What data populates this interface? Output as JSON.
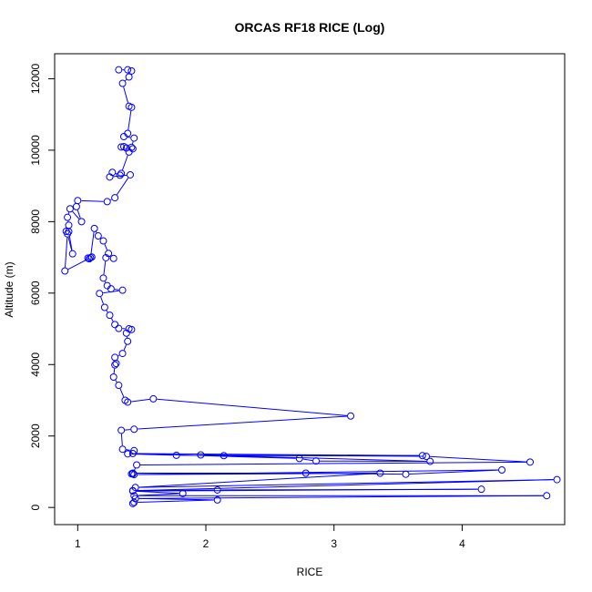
{
  "chart_data": {
    "type": "line",
    "title": "ORCAS RF18 RICE (Log)",
    "xlabel": "RICE",
    "ylabel": "Altitude (m)",
    "xlim": [
      0.82,
      4.8
    ],
    "ylim": [
      -480,
      12700
    ],
    "x_ticks": [
      1,
      2,
      3,
      4
    ],
    "y_ticks": [
      0,
      2000,
      4000,
      6000,
      8000,
      10000,
      12000
    ],
    "line_color": "#0000ff",
    "marker": "open-circle",
    "series": [
      {
        "x": [
          1.32,
          1.39,
          1.42,
          1.4,
          1.35,
          1.4,
          1.42,
          1.39,
          1.36,
          1.44,
          1.42,
          1.36,
          1.34,
          1.38,
          1.43,
          1.4,
          1.34,
          1.33,
          1.27,
          1.25,
          1.41,
          1.29,
          1.23,
          1.0,
          0.99,
          1.03,
          0.94,
          0.92,
          0.93,
          0.91,
          0.93,
          0.96,
          0.92,
          0.9,
          1.11,
          1.09,
          1.08,
          1.1,
          1.13,
          1.16,
          1.2,
          1.24,
          1.28,
          1.22,
          1.2,
          1.23,
          1.26,
          1.35,
          1.17,
          1.21,
          1.25,
          1.29,
          1.32,
          1.4,
          1.42,
          1.38,
          1.39,
          1.35,
          1.29,
          1.3,
          1.29,
          1.28,
          1.32,
          1.37,
          1.39,
          1.59,
          3.13,
          1.44,
          1.34,
          1.35,
          1.44,
          1.39,
          1.77,
          2.14,
          3.69,
          1.43,
          2.73,
          2.86,
          3.75,
          1.96,
          3.72,
          4.53,
          1.46,
          1.43,
          1.42,
          1.43,
          2.78,
          3.56,
          4.31,
          1.44,
          3.36,
          1.45,
          4.74,
          1.43,
          2.09,
          4.15,
          1.43,
          1.82,
          1.44,
          4.66,
          1.45,
          2.09,
          1.44,
          1.43
        ],
        "y": [
          12250,
          12250,
          12220,
          12050,
          11870,
          11230,
          11200,
          10470,
          10380,
          10340,
          10080,
          10100,
          10090,
          10060,
          10040,
          9950,
          9350,
          9300,
          9380,
          9250,
          9310,
          8670,
          8560,
          8590,
          8420,
          8000,
          8360,
          8120,
          7900,
          7730,
          7720,
          7100,
          7660,
          6620,
          7010,
          6960,
          6980,
          6990,
          7810,
          7600,
          7460,
          7110,
          6970,
          6990,
          6420,
          6210,
          6120,
          6080,
          5990,
          5600,
          5380,
          5120,
          5010,
          5000,
          4980,
          4880,
          4650,
          4310,
          4200,
          4030,
          3990,
          3650,
          3420,
          3000,
          2950,
          3040,
          2560,
          2190,
          2160,
          1630,
          1590,
          1500,
          1460,
          1450,
          1450,
          1510,
          1370,
          1300,
          1290,
          1470,
          1430,
          1270,
          1190,
          940,
          940,
          960,
          960,
          930,
          1050,
          920,
          960,
          560,
          780,
          470,
          490,
          510,
          460,
          390,
          330,
          330,
          250,
          210,
          140,
          110
        ]
      }
    ]
  }
}
